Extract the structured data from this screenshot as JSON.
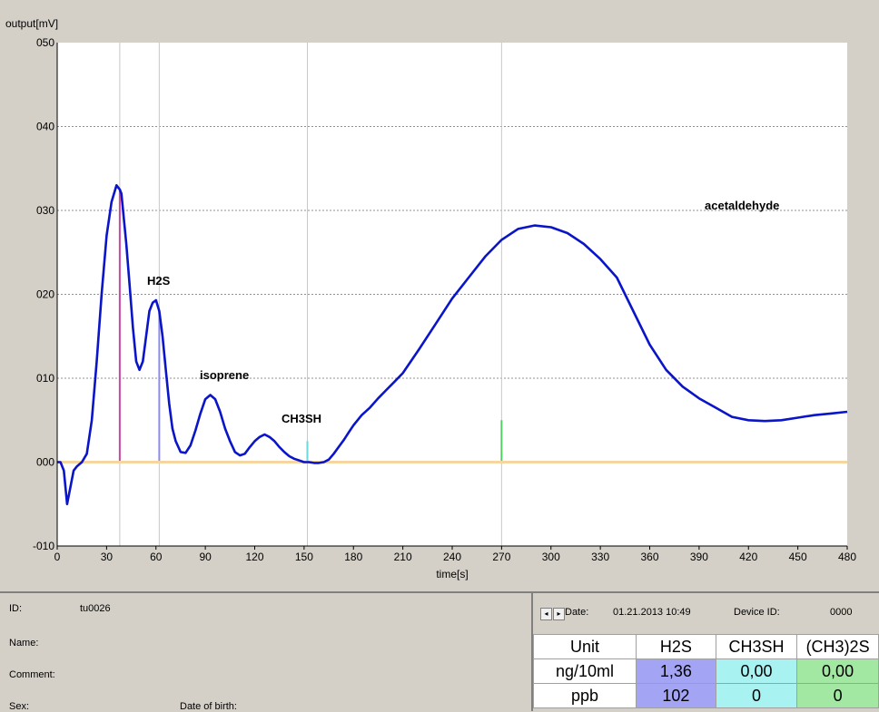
{
  "chart_data": {
    "type": "line",
    "ylabel": "output[mV]",
    "xlabel": "time[s]",
    "xlim": [
      0,
      480
    ],
    "ylim": [
      -10,
      50
    ],
    "x_ticks": [
      0,
      30,
      60,
      90,
      120,
      150,
      180,
      210,
      240,
      270,
      300,
      330,
      360,
      390,
      420,
      450,
      480
    ],
    "x_tick_labels": [
      "0",
      "30",
      "60",
      "90",
      "120",
      "150",
      "180",
      "210",
      "240",
      "270",
      "300",
      "330",
      "360",
      "390",
      "420",
      "450",
      "480"
    ],
    "y_ticks": [
      -10,
      0,
      10,
      20,
      30,
      40,
      50
    ],
    "y_tick_labels": [
      "-010",
      "000",
      "010",
      "020",
      "030",
      "040",
      "050"
    ],
    "grid": "horizontal dashed",
    "baseline": 0,
    "series": [
      {
        "color": "#0a14c8",
        "x": [
          0,
          2,
          4,
          6,
          8,
          10,
          12,
          15,
          18,
          21,
          24,
          27,
          30,
          33,
          36,
          38,
          39,
          40,
          42,
          44,
          46,
          48,
          50,
          52,
          54,
          56,
          58,
          60,
          62,
          64,
          66,
          68,
          70,
          72,
          75,
          78,
          81,
          84,
          87,
          90,
          93,
          96,
          99,
          102,
          105,
          108,
          111,
          114,
          117,
          120,
          123,
          126,
          129,
          132,
          135,
          138,
          141,
          144,
          147,
          150,
          153,
          156,
          159,
          162,
          165,
          168,
          171,
          174,
          177,
          180,
          185,
          190,
          195,
          200,
          205,
          210,
          220,
          230,
          240,
          250,
          260,
          270,
          280,
          290,
          300,
          310,
          320,
          330,
          340,
          350,
          360,
          370,
          380,
          390,
          400,
          410,
          420,
          430,
          440,
          450,
          460,
          470,
          480
        ],
        "y": [
          0,
          0,
          -1,
          -5,
          -3,
          -1,
          -0.5,
          0,
          1,
          5,
          12,
          20,
          27,
          31,
          33,
          32.5,
          32,
          30,
          26,
          21,
          16,
          12,
          11,
          12,
          15,
          18,
          19,
          19.3,
          18,
          15,
          11,
          7,
          4,
          2.5,
          1.2,
          1.1,
          2,
          3.8,
          5.8,
          7.5,
          8,
          7.5,
          6,
          4,
          2.5,
          1.2,
          0.8,
          1,
          1.8,
          2.5,
          3,
          3.3,
          3,
          2.5,
          1.8,
          1.2,
          0.7,
          0.4,
          0.2,
          0,
          0,
          -0.1,
          -0.1,
          0,
          0.3,
          1,
          1.8,
          2.6,
          3.5,
          4.4,
          5.6,
          6.5,
          7.6,
          8.6,
          9.6,
          10.6,
          13.5,
          16.5,
          19.5,
          22,
          24.5,
          26.5,
          27.8,
          28.2,
          28,
          27.3,
          26,
          24.2,
          22,
          18,
          14,
          11,
          9,
          7.6,
          6.5,
          5.4,
          5,
          4.9,
          5,
          5.3,
          5.6,
          5.8,
          6
        ]
      }
    ],
    "markers": [
      {
        "x": 38,
        "top": 32.5,
        "color": "#cc44aa"
      },
      {
        "x": 62,
        "top": 18,
        "color": "#8c8cf0"
      },
      {
        "x": 152,
        "top": 2.5,
        "color": "#6adada"
      },
      {
        "x": 270,
        "top": 5,
        "color": "#55cc66"
      }
    ],
    "annotations": [
      "H2S",
      "isoprene",
      "CH3SH",
      "acetaldehyde"
    ]
  },
  "patient": {
    "id_label": "ID:",
    "id_value": "tu0026",
    "name_label": "Name:",
    "comment_label": "Comment:",
    "sex_label": "Sex:",
    "dob_label": "Date of birth:"
  },
  "results": {
    "date_label": "Date:",
    "date_value": "01.21.2013 10:49",
    "device_label": "Device ID:",
    "device_value": "0000",
    "nav_prev": "◂",
    "nav_next": "▸",
    "headers": [
      "Unit",
      "H2S",
      "CH3SH",
      "(CH3)2S"
    ],
    "rows": [
      {
        "unit": "ng/10ml",
        "values": [
          "1,36",
          "0,00",
          "0,00"
        ]
      },
      {
        "unit": "ppb",
        "values": [
          "102",
          "0",
          "0"
        ]
      }
    ]
  },
  "colors": {
    "curve": "#0a14c8",
    "baseline": "#f5d5a0",
    "plot_bg": "#ffffff",
    "panel_bg": "#d4d0c8",
    "h2s_cell": "#a4a4f5",
    "ch3sh_cell": "#a8f2f2",
    "ch32s_cell": "#a2e8a2"
  }
}
